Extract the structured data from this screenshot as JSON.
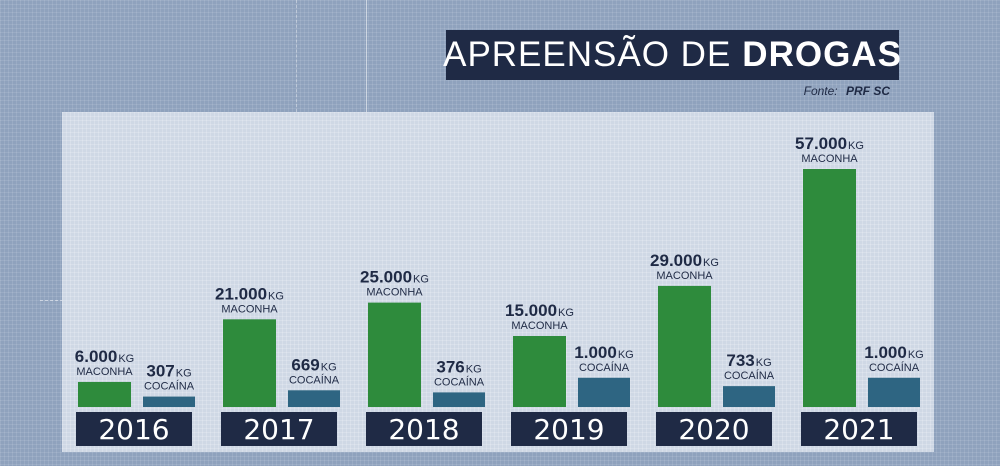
{
  "title": {
    "light": "APREENSÃO DE",
    "bold": "DROGAS"
  },
  "source": {
    "label": "Fonte:",
    "value": "PRF SC"
  },
  "chart_data": {
    "type": "bar",
    "title": "APREENSÃO DE DROGAS",
    "categories": [
      "2016",
      "2017",
      "2018",
      "2019",
      "2020",
      "2021"
    ],
    "unit": "KG",
    "series": [
      {
        "name": "MACONHA",
        "color": "#2e8b3c",
        "values": [
          6000,
          21000,
          25000,
          15000,
          29000,
          57000
        ],
        "labels": [
          "6.000",
          "21.000",
          "25.000",
          "15.000",
          "29.000",
          "57.000"
        ],
        "display_levels": [
          6000,
          21000,
          25000,
          17000,
          29000,
          57000
        ]
      },
      {
        "name": "COCAÍNA",
        "color": "#2e6582",
        "values": [
          307,
          669,
          376,
          1000,
          733,
          1000
        ],
        "labels": [
          "307",
          "669",
          "376",
          "1.000",
          "733",
          "1.000"
        ],
        "display_levels": [
          2500,
          4000,
          3500,
          7000,
          5000,
          7000
        ]
      }
    ],
    "ylim": [
      0,
      57000
    ],
    "grid": false,
    "legend": "none"
  }
}
